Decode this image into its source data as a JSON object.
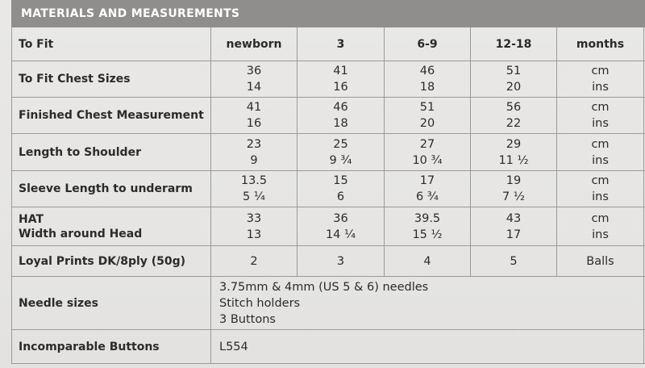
{
  "header": {
    "title": "MATERIALS AND MEASUREMENTS"
  },
  "columns": [
    "To Fit",
    "newborn",
    "3",
    "6-9",
    "12-18",
    "months"
  ],
  "rows": [
    {
      "label": [
        "To Fit Chest Sizes"
      ],
      "values": [
        [
          "36",
          "14"
        ],
        [
          "41",
          "16"
        ],
        [
          "46",
          "18"
        ],
        [
          "51",
          "20"
        ]
      ],
      "unit": [
        "cm",
        "ins"
      ]
    },
    {
      "label": [
        "Finished Chest Measurement"
      ],
      "values": [
        [
          "41",
          "16"
        ],
        [
          "46",
          "18"
        ],
        [
          "51",
          "20"
        ],
        [
          "56",
          "22"
        ]
      ],
      "unit": [
        "cm",
        "ins"
      ]
    },
    {
      "label": [
        "Length to Shoulder"
      ],
      "values": [
        [
          "23",
          "9"
        ],
        [
          "25",
          "9 ¾"
        ],
        [
          "27",
          "10 ¾"
        ],
        [
          "29",
          "11 ½"
        ]
      ],
      "unit": [
        "cm",
        "ins"
      ]
    },
    {
      "label": [
        "Sleeve Length to underarm"
      ],
      "values": [
        [
          "13.5",
          "5 ¼"
        ],
        [
          "15",
          "6"
        ],
        [
          "17",
          "6 ¾"
        ],
        [
          "19",
          "7 ½"
        ]
      ],
      "unit": [
        "cm",
        "ins"
      ]
    },
    {
      "label": [
        "HAT",
        "Width around Head"
      ],
      "values": [
        [
          "33",
          "13"
        ],
        [
          "36",
          "14 ¼"
        ],
        [
          "39.5",
          "15 ½"
        ],
        [
          "43",
          "17"
        ]
      ],
      "unit": [
        "cm",
        "ins"
      ]
    },
    {
      "label": [
        "Loyal Prints DK/8ply (50g)"
      ],
      "values": [
        [
          "2"
        ],
        [
          "3"
        ],
        [
          "4"
        ],
        [
          "5"
        ]
      ],
      "unit": [
        "Balls"
      ]
    }
  ],
  "needles": {
    "label": "Needle sizes",
    "lines": [
      "3.75mm & 4mm (US 5 & 6) needles",
      "Stitch holders",
      "3 Buttons"
    ]
  },
  "buttons": {
    "label": "Incomparable Buttons",
    "value": "L554"
  }
}
